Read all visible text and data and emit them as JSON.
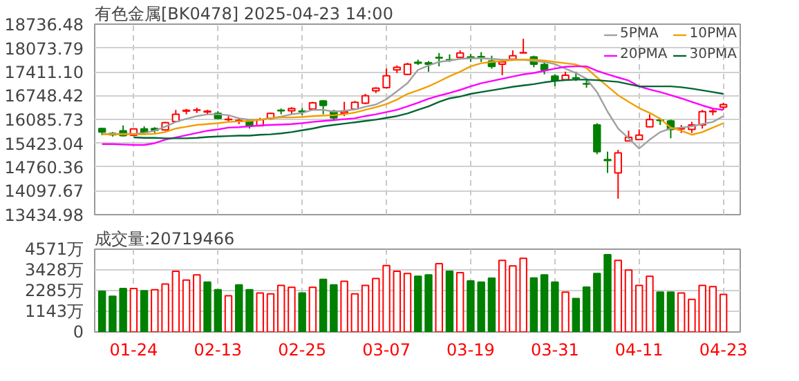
{
  "chart_data": [
    {
      "type": "candlestick",
      "title": "有色金属[BK0478] 2025-04-23 14:00",
      "categories": [
        null,
        null,
        null,
        null,
        null,
        null,
        null,
        null,
        null,
        null,
        null,
        null,
        null,
        null,
        null,
        null,
        null,
        null,
        null,
        null,
        null,
        null,
        null,
        null,
        null,
        null,
        null,
        null,
        null,
        null,
        null,
        null,
        null,
        null,
        null,
        null,
        null,
        null,
        null,
        null,
        null,
        null,
        null,
        null,
        null,
        null,
        null,
        null,
        null,
        null,
        null,
        null,
        null,
        null,
        null,
        null,
        null,
        null,
        null,
        null
      ],
      "ohlc": [
        [
          15832,
          15857,
          15646,
          15733
        ],
        [
          15696,
          15733,
          15609,
          15659
        ],
        [
          15770,
          15918,
          15609,
          15634
        ],
        [
          15646,
          15832,
          15622,
          15820
        ],
        [
          15820,
          15894,
          15683,
          15720
        ],
        [
          15832,
          15869,
          15708,
          15782
        ],
        [
          15795,
          16017,
          15770,
          15993
        ],
        [
          16030,
          16351,
          16005,
          16228
        ],
        [
          16314,
          16376,
          16228,
          16338
        ],
        [
          16339,
          16413,
          16265,
          16351
        ],
        [
          16290,
          16351,
          16203,
          16314
        ],
        [
          16252,
          16314,
          16092,
          16116
        ],
        [
          16080,
          16178,
          16030,
          16092
        ],
        [
          16030,
          16104,
          15956,
          16055
        ],
        [
          16042,
          16067,
          15832,
          15894
        ],
        [
          15906,
          16129,
          15894,
          16080
        ],
        [
          16116,
          16277,
          16079,
          16252
        ],
        [
          16339,
          16388,
          16228,
          16326
        ],
        [
          16326,
          16425,
          16228,
          16388
        ],
        [
          16314,
          16400,
          16203,
          16302
        ],
        [
          16376,
          16574,
          16351,
          16549
        ],
        [
          16598,
          16623,
          16228,
          16474
        ],
        [
          16314,
          16351,
          16067,
          16129
        ],
        [
          16252,
          16574,
          16178,
          16302
        ],
        [
          16376,
          16598,
          16351,
          16561
        ],
        [
          16536,
          16796,
          16512,
          16746
        ],
        [
          16882,
          16981,
          16821,
          16956
        ],
        [
          16969,
          17500,
          16944,
          17302
        ],
        [
          17463,
          17587,
          17376,
          17537
        ],
        [
          17340,
          17661,
          17315,
          17624
        ],
        [
          17673,
          17748,
          17599,
          17649
        ],
        [
          17661,
          17710,
          17414,
          17624
        ],
        [
          17810,
          17933,
          17562,
          17797
        ],
        [
          17748,
          17896,
          17686,
          17736
        ],
        [
          17810,
          18007,
          17785,
          17933
        ],
        [
          17822,
          17908,
          17686,
          17810
        ],
        [
          17834,
          17958,
          17686,
          17822
        ],
        [
          17711,
          17859,
          17500,
          17562
        ],
        [
          17624,
          17748,
          17315,
          17686
        ],
        [
          17760,
          18007,
          17723,
          17859
        ],
        [
          17933,
          18329,
          17933,
          17945
        ],
        [
          17822,
          17859,
          17537,
          17624
        ],
        [
          17612,
          17686,
          17340,
          17463
        ],
        [
          17290,
          17340,
          17006,
          17167
        ],
        [
          17191,
          17414,
          17167,
          17315
        ],
        [
          17241,
          17414,
          17154,
          17229
        ],
        [
          17080,
          17216,
          16969,
          17068
        ],
        [
          15931,
          15980,
          15115,
          15189
        ],
        [
          14967,
          15189,
          14596,
          14942
        ],
        [
          14596,
          15238,
          13879,
          15152
        ],
        [
          15486,
          15770,
          15486,
          15585
        ],
        [
          15523,
          15807,
          15523,
          15647
        ],
        [
          15881,
          16228,
          15881,
          16080
        ],
        [
          16067,
          16129,
          15931,
          16055
        ],
        [
          16042,
          16079,
          15560,
          15807
        ],
        [
          15820,
          15931,
          15708,
          15832
        ],
        [
          15807,
          16018,
          15708,
          15931
        ],
        [
          15931,
          16351,
          15832,
          16302
        ],
        [
          16302,
          16388,
          16203,
          16314
        ],
        [
          16425,
          16549,
          16351,
          16499
        ]
      ],
      "colors": [
        "#008000",
        "#008000",
        "#008000",
        "#ff0000",
        "#008000",
        "#008000",
        "#ff0000",
        "#ff0000",
        "#ff0000",
        "#ff0000",
        "#ff0000",
        "#008000",
        "#ff0000",
        "#ff0000",
        "#008000",
        "#ff0000",
        "#ff0000",
        "#008000",
        "#ff0000",
        "#008000",
        "#ff0000",
        "#008000",
        "#008000",
        "#ff0000",
        "#ff0000",
        "#ff0000",
        "#ff0000",
        "#ff0000",
        "#ff0000",
        "#ff0000",
        "#008000",
        "#008000",
        "#008000",
        "#008000",
        "#ff0000",
        "#008000",
        "#008000",
        "#008000",
        "#ff0000",
        "#ff0000",
        "#ff0000",
        "#008000",
        "#008000",
        "#008000",
        "#ff0000",
        "#008000",
        "#008000",
        "#008000",
        "#008000",
        "#ff0000",
        "#ff0000",
        "#ff0000",
        "#ff0000",
        "#008000",
        "#008000",
        "#ff0000",
        "#ff0000",
        "#ff0000",
        "#ff0000",
        "#ff0000"
      ],
      "series": [
        {
          "name": "5PMA",
          "type": "line",
          "color": "#a0a0a0",
          "values": [
            15684,
            15684,
            15684,
            15684,
            15708,
            15770,
            15881,
            16017,
            16104,
            16178,
            16228,
            16228,
            16203,
            16116,
            16079,
            16079,
            16116,
            16166,
            16228,
            16265,
            16351,
            16351,
            16302,
            16326,
            16363,
            16438,
            16499,
            16648,
            16870,
            17093,
            17464,
            17587,
            17686,
            17723,
            17772,
            17785,
            17785,
            17772,
            17748,
            17748,
            17748,
            17711,
            17686,
            17624,
            17501,
            17377,
            17216,
            16846,
            16302,
            15832,
            15560,
            15276,
            15523,
            15733,
            15832,
            15857,
            15894,
            15956,
            16017,
            16178
          ]
        },
        {
          "name": "10PMA",
          "type": "line",
          "color": "#f0a000",
          "values": [
            15671,
            15671,
            15671,
            15671,
            15671,
            15684,
            15733,
            15832,
            15881,
            15931,
            15956,
            15980,
            16017,
            16030,
            16042,
            16079,
            16116,
            16141,
            16141,
            16153,
            16178,
            16190,
            16203,
            16228,
            16277,
            16351,
            16425,
            16512,
            16635,
            16796,
            16895,
            17006,
            17142,
            17290,
            17414,
            17562,
            17649,
            17686,
            17711,
            17735,
            17748,
            17748,
            17723,
            17686,
            17649,
            17612,
            17513,
            17253,
            17006,
            16759,
            16574,
            16401,
            16265,
            16104,
            15857,
            15770,
            15659,
            15733,
            15857,
            15980
          ]
        },
        {
          "name": "20PMA",
          "type": "line",
          "color": "#ff00ff",
          "values": [
            15399,
            15399,
            15387,
            15375,
            15375,
            15424,
            15523,
            15585,
            15647,
            15708,
            15770,
            15807,
            15857,
            15869,
            15894,
            15919,
            15931,
            15943,
            15956,
            15980,
            16017,
            16042,
            16067,
            16092,
            16116,
            16178,
            16228,
            16289,
            16351,
            16450,
            16549,
            16660,
            16747,
            16821,
            16907,
            17006,
            17093,
            17155,
            17216,
            17278,
            17340,
            17377,
            17439,
            17501,
            17550,
            17562,
            17562,
            17439,
            17340,
            17253,
            17167,
            17006,
            16920,
            16846,
            16759,
            16672,
            16574,
            16475,
            16388,
            16351
          ]
        },
        {
          "name": "30PMA",
          "type": "line",
          "color": "#006633",
          "values": [
            null,
            null,
            null,
            15585,
            15572,
            15572,
            15560,
            15560,
            15560,
            15572,
            15597,
            15610,
            15622,
            15634,
            15634,
            15659,
            15671,
            15696,
            15733,
            15783,
            15832,
            15894,
            15931,
            15968,
            16005,
            16042,
            16079,
            16129,
            16178,
            16252,
            16351,
            16450,
            16574,
            16672,
            16722,
            16796,
            16846,
            16895,
            16944,
            16994,
            17031,
            17068,
            17117,
            17155,
            17179,
            17192,
            17192,
            17179,
            17155,
            17130,
            17068,
            17006,
            17006,
            17006,
            17006,
            16981,
            16944,
            16895,
            16846,
            16796
          ]
        }
      ],
      "ylim": [
        13434.98,
        18736.48
      ],
      "yticks": [
        13434.98,
        14097.67,
        14760.36,
        15423.04,
        16085.73,
        16748.42,
        {
          "value": 17411.1,
          "label": "17411.10"
        },
        18073.79,
        18736.48
      ],
      "grid": true,
      "legend": "top right",
      "tick_labels": "y"
    },
    {
      "type": "bar",
      "title": "成交量:20719466",
      "categories": [
        null,
        null,
        null,
        "01-24",
        null,
        null,
        null,
        null,
        null,
        null,
        null,
        "02-13",
        null,
        null,
        null,
        null,
        null,
        null,
        null,
        "02-25",
        null,
        null,
        null,
        null,
        null,
        null,
        null,
        "03-07",
        null,
        null,
        null,
        null,
        null,
        null,
        null,
        "03-19",
        null,
        null,
        null,
        null,
        null,
        null,
        null,
        "03-31",
        null,
        null,
        null,
        null,
        null,
        null,
        null,
        "04-11",
        null,
        null,
        null,
        null,
        null,
        null,
        null,
        "04-23"
      ],
      "values": [
        2250,
        1970,
        2400,
        2400,
        2280,
        2330,
        2650,
        3350,
        2870,
        3150,
        2750,
        2330,
        2000,
        2600,
        2330,
        2150,
        2100,
        2570,
        2470,
        2150,
        2470,
        2900,
        2600,
        2800,
        2100,
        2570,
        2950,
        3670,
        3350,
        3230,
        3080,
        3150,
        3770,
        3350,
        3280,
        2820,
        2750,
        2970,
        3950,
        3650,
        4070,
        2980,
        3150,
        2750,
        2200,
        1850,
        2480,
        3230,
        4270,
        3950,
        3420,
        2570,
        3080,
        2200,
        2200,
        2150,
        1800,
        2570,
        2500,
        2072
      ],
      "colors": [
        "#008000",
        "#008000",
        "#008000",
        "#ff0000",
        "#008000",
        "#ff0000",
        "#ff0000",
        "#ff0000",
        "#ff0000",
        "#ff0000",
        "#008000",
        "#008000",
        "#ff0000",
        "#008000",
        "#008000",
        "#ff0000",
        "#ff0000",
        "#ff0000",
        "#ff0000",
        "#008000",
        "#ff0000",
        "#008000",
        "#008000",
        "#ff0000",
        "#ff0000",
        "#ff0000",
        "#ff0000",
        "#ff0000",
        "#ff0000",
        "#ff0000",
        "#008000",
        "#008000",
        "#ff0000",
        "#008000",
        "#ff0000",
        "#008000",
        "#008000",
        "#008000",
        "#ff0000",
        "#ff0000",
        "#ff0000",
        "#008000",
        "#008000",
        "#008000",
        "#ff0000",
        "#008000",
        "#008000",
        "#008000",
        "#008000",
        "#ff0000",
        "#ff0000",
        "#ff0000",
        "#ff0000",
        "#008000",
        "#008000",
        "#ff0000",
        "#ff0000",
        "#ff0000",
        "#ff0000",
        "#ff0000"
      ],
      "ylim": [
        0,
        4571
      ],
      "yticks": [
        0,
        {
          "value": 1143,
          "label": "1143万"
        },
        {
          "value": 2285,
          "label": "2285万"
        },
        {
          "value": 3428,
          "label": "3428万"
        },
        {
          "value": 4571,
          "label": "4571万"
        }
      ],
      "grid": true
    }
  ]
}
